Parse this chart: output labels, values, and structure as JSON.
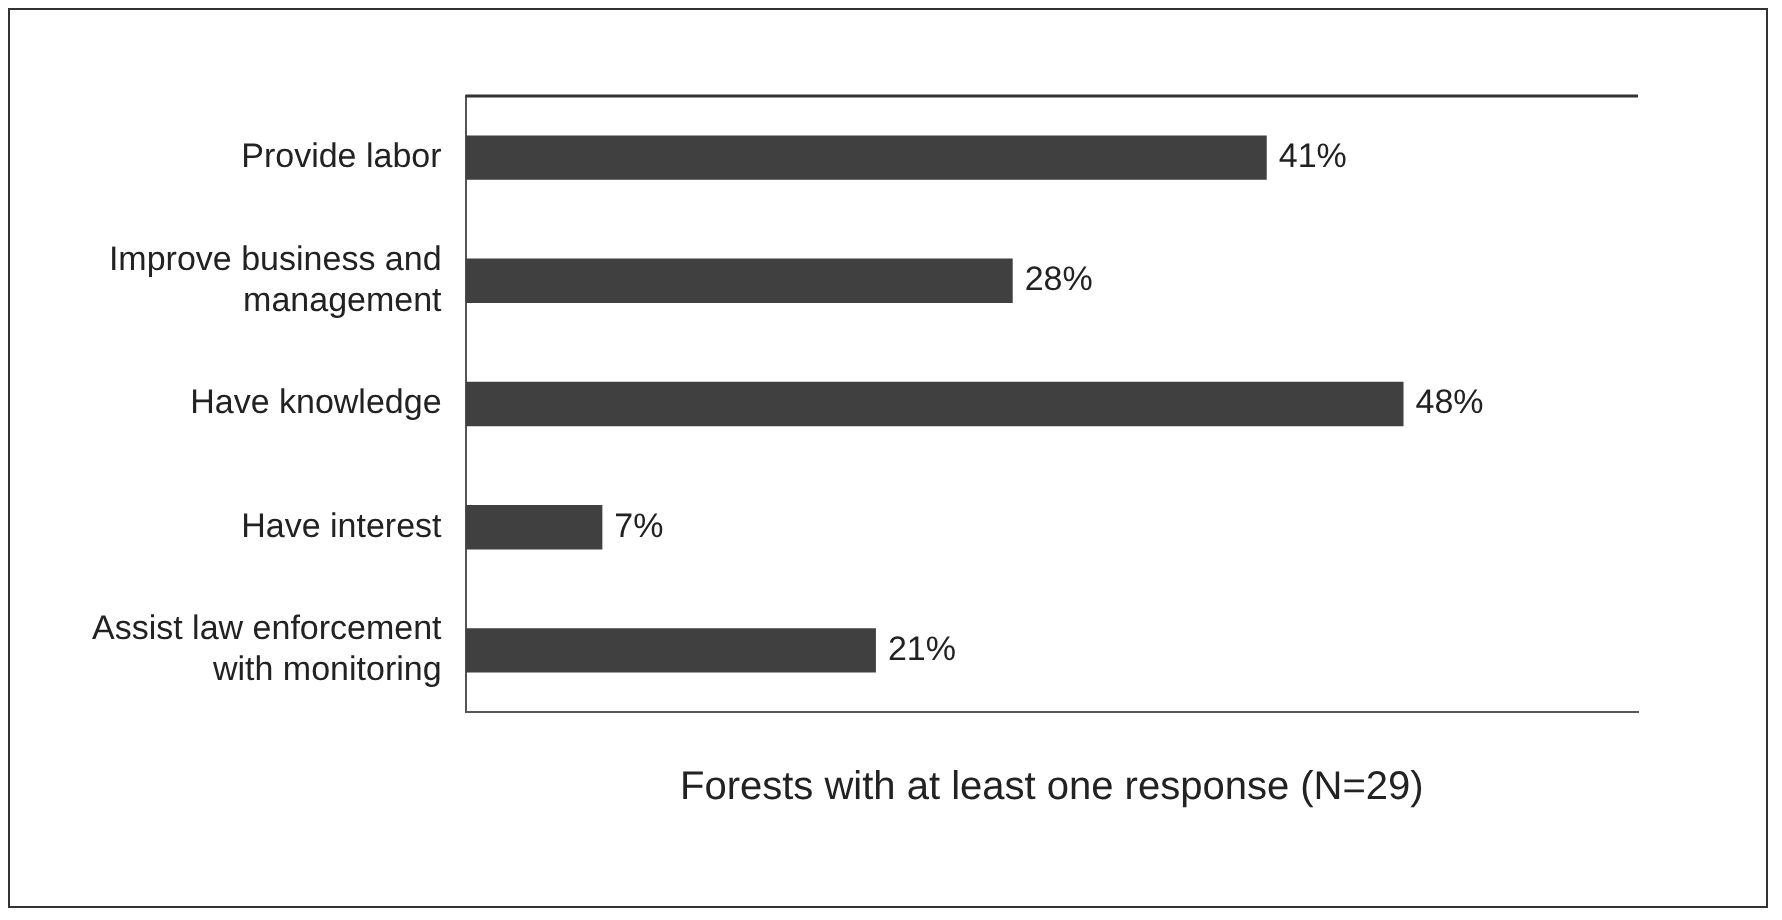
{
  "chart_data": {
    "type": "bar",
    "orientation": "horizontal",
    "categories": [
      "Provide labor",
      "Improve business and management",
      "Have knowledge",
      "Have interest",
      "Assist law enforcement with monitoring"
    ],
    "values": [
      41,
      28,
      48,
      7,
      21
    ],
    "color": "#404040",
    "value_labels": [
      "41%",
      "28%",
      "48%",
      "7%",
      "21%"
    ],
    "xlim": [
      0,
      60
    ],
    "xlabel": "Forests with at least one response (N=29)",
    "tick_labels": "y",
    "grid": false,
    "legend": false
  }
}
